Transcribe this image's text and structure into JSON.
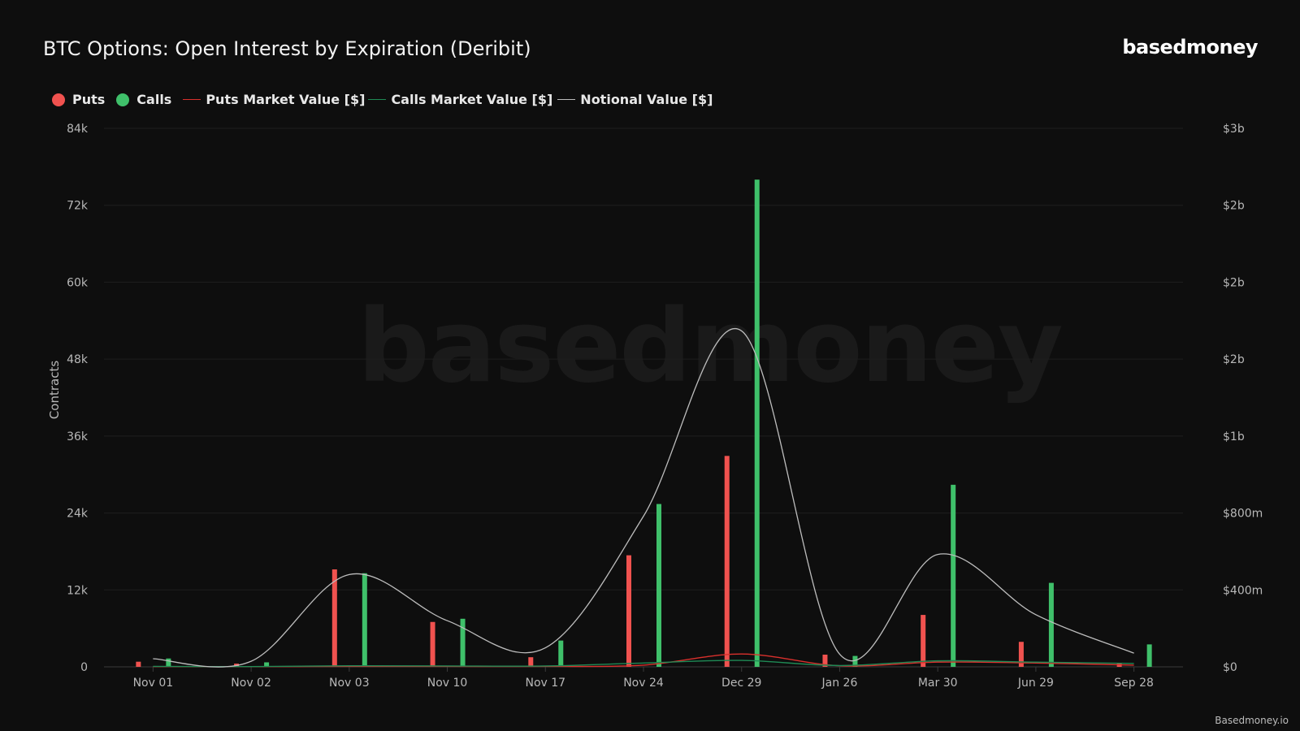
{
  "header": {
    "title": "BTC Options: Open Interest by Expiration (Deribit)",
    "brand": "basedmoney"
  },
  "watermark": "basedmoney",
  "footer": {
    "text": "Basedmoney.io"
  },
  "legend": [
    {
      "label": "Puts",
      "kind": "dot",
      "color": "#f0524f"
    },
    {
      "label": "Calls",
      "kind": "dot",
      "color": "#3fc06a"
    },
    {
      "label": "Puts Market Value [$]",
      "kind": "line",
      "color": "#d9302c"
    },
    {
      "label": "Calls Market Value [$]",
      "kind": "line",
      "color": "#1f8a55"
    },
    {
      "label": "Notional Value [$]",
      "kind": "line",
      "color": "#bdbdbd"
    }
  ],
  "chart_data": {
    "type": "bar",
    "categories": [
      "Nov 01",
      "Nov 02",
      "Nov 03",
      "Nov 10",
      "Nov 17",
      "Nov 24",
      "Dec 29",
      "Jan 26",
      "Mar 30",
      "Jun 29",
      "Sep 28"
    ],
    "ylabel": "Contracts",
    "ylim": [
      0,
      84000
    ],
    "yticks": [
      0,
      12000,
      24000,
      36000,
      48000,
      60000,
      72000,
      84000
    ],
    "ytick_labels": [
      "0",
      "12k",
      "24k",
      "36k",
      "48k",
      "60k",
      "72k",
      "84k"
    ],
    "y2lim": [
      0,
      2520000000
    ],
    "y2tick_labels": [
      "$0",
      "$400m",
      "$800m",
      "$1b",
      "$2b",
      "$2b",
      "$2b",
      "$3b"
    ],
    "grid": true,
    "legend_position": "top-left",
    "series": [
      {
        "name": "Puts",
        "type": "bar",
        "axis": "left",
        "color": "#f0524f",
        "values": [
          800,
          500,
          15200,
          7000,
          1500,
          17400,
          32900,
          1900,
          8100,
          3900,
          600
        ]
      },
      {
        "name": "Calls",
        "type": "bar",
        "axis": "left",
        "color": "#3fc06a",
        "values": [
          1300,
          700,
          14600,
          7500,
          4100,
          25400,
          76000,
          1700,
          28400,
          13100,
          3500
        ]
      },
      {
        "name": "Puts Market Value [$]",
        "type": "line",
        "axis": "right",
        "color": "#d9302c",
        "values": [
          1000000,
          800000,
          2000000,
          2000000,
          2000000,
          8000000,
          60000000,
          5000000,
          22000000,
          18000000,
          8000000
        ]
      },
      {
        "name": "Calls Market Value [$]",
        "type": "line",
        "axis": "right",
        "color": "#1f8a55",
        "values": [
          2000000,
          1000000,
          5000000,
          4000000,
          4000000,
          18000000,
          30000000,
          6000000,
          28000000,
          22000000,
          16000000
        ]
      },
      {
        "name": "Notional Value [$]",
        "type": "line",
        "axis": "right",
        "color": "#bdbdbd",
        "values": [
          38000000,
          26000000,
          432000000,
          216000000,
          89000000,
          705000000,
          1572000000,
          59000000,
          526000000,
          244000000,
          64000000
        ]
      }
    ]
  }
}
